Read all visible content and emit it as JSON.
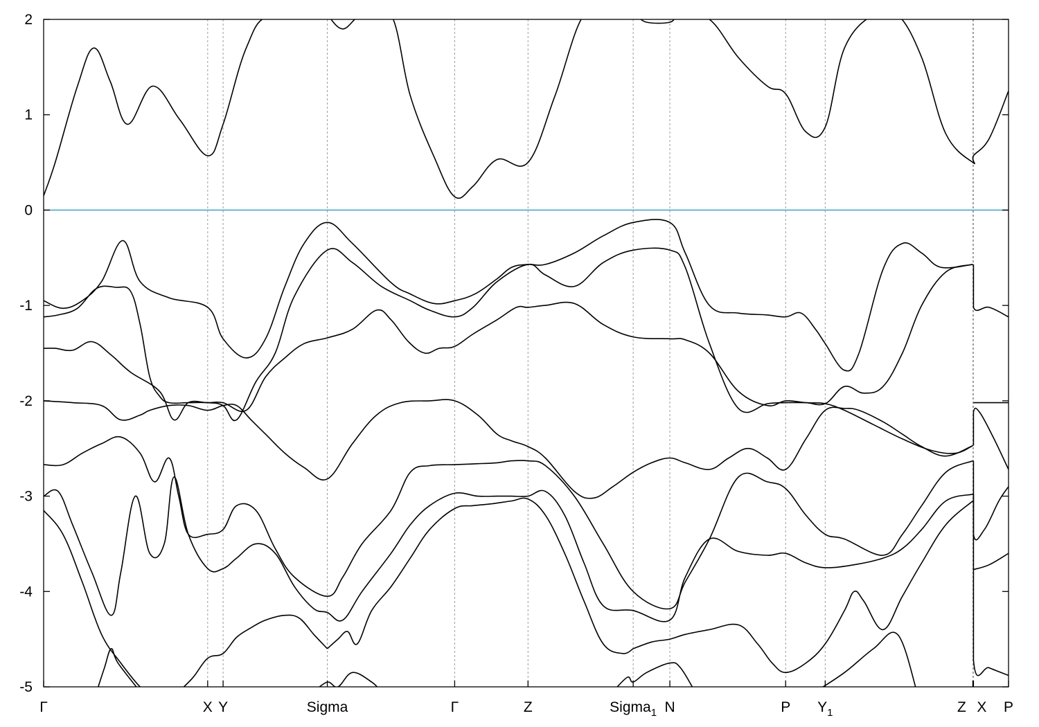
{
  "chart_data": {
    "type": "line",
    "title": "",
    "xlabel": "",
    "ylabel": "",
    "ylim": [
      -5,
      2
    ],
    "y_ticks": [
      {
        "value": 2,
        "label": "2"
      },
      {
        "value": 1,
        "label": "1"
      },
      {
        "value": 0,
        "label": "0"
      },
      {
        "value": -1,
        "label": "-1"
      },
      {
        "value": -2,
        "label": "-2"
      },
      {
        "value": -3,
        "label": "-3"
      },
      {
        "value": -4,
        "label": "-4"
      },
      {
        "value": -5,
        "label": "-5"
      }
    ],
    "x_range": [
      0,
      1
    ],
    "k_points": [
      {
        "x": 0.0,
        "label": "Γ",
        "sub": ""
      },
      {
        "x": 0.17,
        "label": "X",
        "sub": ""
      },
      {
        "x": 0.186,
        "label": "Y",
        "sub": ""
      },
      {
        "x": 0.294,
        "label": "Sigma",
        "sub": ""
      },
      {
        "x": 0.426,
        "label": "Γ",
        "sub": ""
      },
      {
        "x": 0.502,
        "label": "Z",
        "sub": ""
      },
      {
        "x": 0.611,
        "label": "Sigma",
        "sub": "1"
      },
      {
        "x": 0.649,
        "label": "N",
        "sub": ""
      },
      {
        "x": 0.769,
        "label": "P",
        "sub": ""
      },
      {
        "x": 0.81,
        "label": "Y",
        "sub": "1"
      },
      {
        "x": 0.963,
        "label": "Z",
        "sub": ""
      },
      {
        "x": 0.9637,
        "label": "X",
        "sub": ""
      },
      {
        "x": 1.0,
        "label": "P",
        "sub": ""
      }
    ],
    "fermi_level": 0,
    "fermi_color": "#4aa8c6",
    "band_color": "#000000",
    "grid": "dashed vertical lines at k-points",
    "series": [
      {
        "x": [
          0,
          0.012,
          0.035,
          0.052,
          0.069,
          0.087,
          0.113,
          0.141,
          0.17,
          0.186,
          0.21,
          0.235,
          0.294
        ],
        "y": [
          0.15,
          0.5,
          1.3,
          1.7,
          1.35,
          0.9,
          1.3,
          0.95,
          0.57,
          0.9,
          1.7,
          2.05,
          2.05
        ]
      },
      {
        "x": [
          0.294,
          0.31,
          0.33,
          0.36,
          0.38,
          0.405,
          0.426,
          0.445,
          0.47,
          0.502,
          0.53,
          0.56,
          0.59,
          0.611,
          0.625,
          0.649,
          0.66,
          0.69,
          0.72,
          0.75,
          0.769,
          0.79,
          0.81,
          0.83,
          0.86,
          0.885,
          0.91,
          0.935,
          0.963,
          0.9637,
          0.98,
          1.0
        ],
        "y": [
          2.05,
          1.9,
          2.05,
          2.05,
          1.2,
          0.55,
          0.14,
          0.25,
          0.53,
          0.5,
          1.2,
          2.05,
          2.05,
          2.05,
          1.97,
          1.97,
          2.05,
          2.0,
          1.6,
          1.3,
          1.22,
          0.82,
          0.87,
          1.7,
          2.05,
          2.05,
          1.6,
          0.8,
          0.5,
          0.57,
          0.75,
          1.25
        ]
      },
      {
        "x": [
          0,
          0.02,
          0.04,
          0.06,
          0.082,
          0.1,
          0.13,
          0.17,
          0.186,
          0.21,
          0.23,
          0.25,
          0.27,
          0.294,
          0.32,
          0.36,
          0.38,
          0.405,
          0.426,
          0.447,
          0.47,
          0.485,
          0.502,
          0.52,
          0.55,
          0.58,
          0.611,
          0.649,
          0.665,
          0.69,
          0.72,
          0.75,
          0.769,
          0.785,
          0.8,
          0.81,
          0.83,
          0.845,
          0.87,
          0.89,
          0.91,
          0.93,
          0.963
        ],
        "y": [
          -0.95,
          -1.03,
          -0.95,
          -0.75,
          -0.32,
          -0.75,
          -0.92,
          -1.02,
          -1.35,
          -1.55,
          -1.35,
          -0.8,
          -0.35,
          -0.13,
          -0.35,
          -0.76,
          -0.88,
          -0.98,
          -0.95,
          -0.88,
          -0.72,
          -0.6,
          -0.57,
          -0.57,
          -0.45,
          -0.27,
          -0.13,
          -0.13,
          -0.45,
          -1.0,
          -1.08,
          -1.1,
          -1.12,
          -1.08,
          -1.25,
          -1.4,
          -1.68,
          -1.5,
          -0.62,
          -0.35,
          -0.45,
          -0.6,
          -0.57
        ]
      },
      {
        "x": [
          0,
          0.015,
          0.035,
          0.055,
          0.075,
          0.09,
          0.1,
          0.11,
          0.12,
          0.13,
          0.15,
          0.17,
          0.186,
          0.2,
          0.22,
          0.24,
          0.26,
          0.294,
          0.32,
          0.35,
          0.38,
          0.4,
          0.426,
          0.445,
          0.47,
          0.502,
          0.52,
          0.55,
          0.58,
          0.611,
          0.649,
          0.665,
          0.69,
          0.72,
          0.75,
          0.769,
          0.79,
          0.81,
          0.83,
          0.85,
          0.87,
          0.89,
          0.91,
          0.935,
          0.963
        ],
        "y": [
          -1.12,
          -1.1,
          -1.03,
          -0.82,
          -0.81,
          -0.85,
          -1.2,
          -1.75,
          -1.95,
          -2.02,
          -2.02,
          -2.02,
          -2.05,
          -2.2,
          -1.8,
          -1.5,
          -0.9,
          -0.42,
          -0.55,
          -0.8,
          -0.95,
          -1.05,
          -1.12,
          -1.02,
          -0.75,
          -0.57,
          -0.68,
          -0.8,
          -0.55,
          -0.42,
          -0.42,
          -0.6,
          -1.4,
          -2.08,
          -2.03,
          -2.02,
          -2.02,
          -2.03,
          -1.85,
          -1.92,
          -1.85,
          -1.5,
          -1.0,
          -0.65,
          -0.57
        ]
      },
      {
        "x": [
          0,
          0.012,
          0.03,
          0.05,
          0.07,
          0.09,
          0.12,
          0.135,
          0.15,
          0.17,
          0.186,
          0.21,
          0.23,
          0.25,
          0.27,
          0.294,
          0.32,
          0.345,
          0.36,
          0.378,
          0.395,
          0.41,
          0.426,
          0.445,
          0.47,
          0.49,
          0.502,
          0.52,
          0.55,
          0.58,
          0.611,
          0.649,
          0.665,
          0.69,
          0.72,
          0.75,
          0.769,
          0.79,
          0.81,
          0.83,
          0.86,
          0.89,
          0.92,
          0.945,
          0.963
        ],
        "y": [
          -1.45,
          -1.45,
          -1.47,
          -1.38,
          -1.52,
          -1.7,
          -1.9,
          -2.2,
          -2.02,
          -2.02,
          -2.02,
          -2.1,
          -1.75,
          -1.55,
          -1.4,
          -1.34,
          -1.25,
          -1.05,
          -1.15,
          -1.38,
          -1.5,
          -1.45,
          -1.43,
          -1.3,
          -1.15,
          -1.02,
          -1.02,
          -1.0,
          -0.98,
          -1.2,
          -1.33,
          -1.35,
          -1.36,
          -1.5,
          -1.9,
          -2.05,
          -2.0,
          -2.02,
          -2.03,
          -2.1,
          -2.25,
          -2.4,
          -2.52,
          -2.55,
          -2.47
        ]
      },
      {
        "x": [
          0,
          0.03,
          0.06,
          0.08,
          0.1,
          0.11,
          0.13,
          0.15,
          0.17,
          0.186,
          0.2,
          0.215,
          0.23,
          0.25,
          0.27,
          0.294,
          0.32,
          0.345,
          0.37,
          0.4,
          0.426,
          0.45,
          0.47,
          0.485,
          0.502,
          0.52,
          0.55,
          0.57,
          0.59,
          0.611,
          0.63,
          0.649,
          0.665,
          0.69,
          0.71,
          0.73,
          0.75,
          0.769,
          0.79,
          0.81,
          0.83,
          0.845,
          0.87,
          0.89,
          0.91,
          0.935,
          0.963
        ],
        "y": [
          -2.0,
          -2.02,
          -2.05,
          -2.2,
          -2.15,
          -2.1,
          -2.05,
          -2.05,
          -2.1,
          -2.05,
          -2.05,
          -2.2,
          -2.35,
          -2.55,
          -2.7,
          -2.82,
          -2.45,
          -2.15,
          -2.02,
          -2.0,
          -2.0,
          -2.15,
          -2.35,
          -2.42,
          -2.48,
          -2.6,
          -2.95,
          -3.02,
          -2.9,
          -2.75,
          -2.65,
          -2.6,
          -2.65,
          -2.72,
          -2.6,
          -2.5,
          -2.6,
          -2.72,
          -2.4,
          -2.1,
          -2.08,
          -2.1,
          -2.22,
          -2.35,
          -2.48,
          -2.58,
          -2.47
        ]
      },
      {
        "x": [
          0,
          0.02,
          0.04,
          0.06,
          0.08,
          0.1,
          0.115,
          0.13,
          0.14,
          0.15,
          0.17,
          0.186,
          0.2,
          0.22,
          0.24,
          0.26,
          0.294,
          0.31,
          0.33,
          0.36,
          0.38,
          0.4,
          0.426,
          0.45,
          0.47,
          0.485,
          0.502,
          0.52,
          0.55,
          0.58,
          0.611,
          0.649,
          0.665,
          0.69,
          0.72,
          0.75,
          0.769,
          0.79,
          0.81,
          0.83,
          0.87,
          0.89,
          0.91,
          0.935,
          0.963
        ],
        "y": [
          -2.67,
          -2.67,
          -2.55,
          -2.45,
          -2.38,
          -2.55,
          -2.85,
          -2.6,
          -3.0,
          -3.4,
          -3.4,
          -3.35,
          -3.1,
          -3.15,
          -3.55,
          -3.85,
          -4.05,
          -3.85,
          -3.5,
          -3.15,
          -2.75,
          -2.68,
          -2.67,
          -2.66,
          -2.65,
          -2.63,
          -2.63,
          -2.68,
          -3.0,
          -3.5,
          -4.0,
          -4.18,
          -3.9,
          -3.45,
          -2.8,
          -2.85,
          -2.92,
          -3.2,
          -3.4,
          -3.45,
          -3.62,
          -3.4,
          -3.1,
          -2.75,
          -2.63
        ]
      },
      {
        "x": [
          0,
          0.015,
          0.03,
          0.05,
          0.07,
          0.08,
          0.095,
          0.11,
          0.125,
          0.135,
          0.15,
          0.17,
          0.186,
          0.2,
          0.22,
          0.24,
          0.26,
          0.28,
          0.294,
          0.31,
          0.33,
          0.36,
          0.38,
          0.4,
          0.426,
          0.45,
          0.47,
          0.485,
          0.502,
          0.52,
          0.54,
          0.56,
          0.58,
          0.611,
          0.649,
          0.665,
          0.69,
          0.72,
          0.75,
          0.769,
          0.79,
          0.81,
          0.84,
          0.87,
          0.89,
          0.91,
          0.935,
          0.963
        ],
        "y": [
          -3.0,
          -2.95,
          -3.3,
          -3.8,
          -4.25,
          -3.8,
          -3.0,
          -3.6,
          -3.5,
          -2.8,
          -3.4,
          -3.76,
          -3.76,
          -3.65,
          -3.5,
          -3.6,
          -3.95,
          -4.18,
          -4.22,
          -4.3,
          -4.0,
          -3.6,
          -3.3,
          -3.1,
          -2.97,
          -3.0,
          -3.0,
          -3.0,
          -3.0,
          -2.95,
          -3.2,
          -3.7,
          -4.15,
          -4.2,
          -4.3,
          -3.85,
          -3.45,
          -3.58,
          -3.62,
          -3.6,
          -3.7,
          -3.75,
          -3.72,
          -3.65,
          -3.55,
          -3.35,
          -3.05,
          -2.98
        ]
      },
      {
        "x": [
          0,
          0.02,
          0.04,
          0.06,
          0.08,
          0.1,
          0.11
        ],
        "y": [
          -3.15,
          -3.4,
          -3.9,
          -4.45,
          -4.75,
          -5.0,
          -5.05
        ]
      },
      {
        "x": [
          0.055,
          0.063,
          0.07,
          0.077,
          0.1
        ],
        "y": [
          -5.05,
          -4.8,
          -4.6,
          -4.75,
          -5.05
        ]
      },
      {
        "x": [
          0.14,
          0.155,
          0.17,
          0.186,
          0.2,
          0.215,
          0.23,
          0.25,
          0.265,
          0.28,
          0.294
        ],
        "y": [
          -5.05,
          -4.9,
          -4.7,
          -4.65,
          -4.48,
          -4.38,
          -4.3,
          -4.25,
          -4.28,
          -4.45,
          -4.6
        ]
      },
      {
        "x": [
          0.294,
          0.305,
          0.315,
          0.325,
          0.34,
          0.36,
          0.38,
          0.4,
          0.426,
          0.445,
          0.465,
          0.485,
          0.502,
          0.52,
          0.54,
          0.56,
          0.58,
          0.6,
          0.611
        ],
        "y": [
          -4.6,
          -4.5,
          -4.42,
          -4.55,
          -4.2,
          -3.95,
          -3.65,
          -3.35,
          -3.13,
          -3.1,
          -3.08,
          -3.05,
          -3.03,
          -3.2,
          -3.6,
          -4.1,
          -4.55,
          -4.65,
          -4.6
        ]
      },
      {
        "x": [
          0.611,
          0.63,
          0.649,
          0.665,
          0.69,
          0.72,
          0.74,
          0.755,
          0.769,
          0.79,
          0.81,
          0.83,
          0.84,
          0.85,
          0.87,
          0.89,
          0.91,
          0.935,
          0.963
        ],
        "y": [
          -4.6,
          -4.53,
          -4.5,
          -4.45,
          -4.4,
          -4.35,
          -4.55,
          -4.75,
          -4.85,
          -4.75,
          -4.55,
          -4.2,
          -4.0,
          -4.1,
          -4.4,
          -4.05,
          -3.7,
          -3.3,
          -3.05
        ]
      },
      {
        "x": [
          0.28,
          0.294,
          0.305,
          0.32,
          0.34,
          0.35
        ],
        "y": [
          -5.05,
          -4.95,
          -5.0,
          -4.85,
          -4.95,
          -5.05
        ]
      },
      {
        "x": [
          0.59,
          0.605,
          0.611,
          0.625,
          0.649,
          0.66,
          0.675
        ],
        "y": [
          -5.05,
          -4.9,
          -4.95,
          -4.85,
          -4.75,
          -4.8,
          -5.05
        ]
      },
      {
        "x": [
          0.8,
          0.83,
          0.86,
          0.885,
          0.905
        ],
        "y": [
          -5.05,
          -4.85,
          -4.6,
          -4.45,
          -5.05
        ]
      },
      {
        "x": [
          0.9637,
          0.9637,
          0.98,
          1.0
        ],
        "y": [
          -0.57,
          -1.02,
          -1.02,
          -1.12
        ]
      },
      {
        "x": [
          0.9637,
          1.0
        ],
        "y": [
          -2.02,
          -2.02
        ]
      },
      {
        "x": [
          0.9637,
          0.9637,
          0.97,
          0.985,
          1.0
        ],
        "y": [
          -2.47,
          -2.12,
          -2.12,
          -2.4,
          -2.72
        ]
      },
      {
        "x": [
          0.9637,
          0.9637,
          0.975,
          0.99,
          1.0
        ],
        "y": [
          -2.63,
          -3.4,
          -3.35,
          -3.05,
          -2.9
        ]
      },
      {
        "x": [
          0.9637,
          0.98,
          1.0
        ],
        "y": [
          -3.77,
          -3.72,
          -3.6
        ]
      },
      {
        "x": [
          0.9637,
          0.9637,
          0.98,
          1.0
        ],
        "y": [
          -2.98,
          -4.72,
          -4.8,
          -4.88
        ]
      }
    ]
  }
}
